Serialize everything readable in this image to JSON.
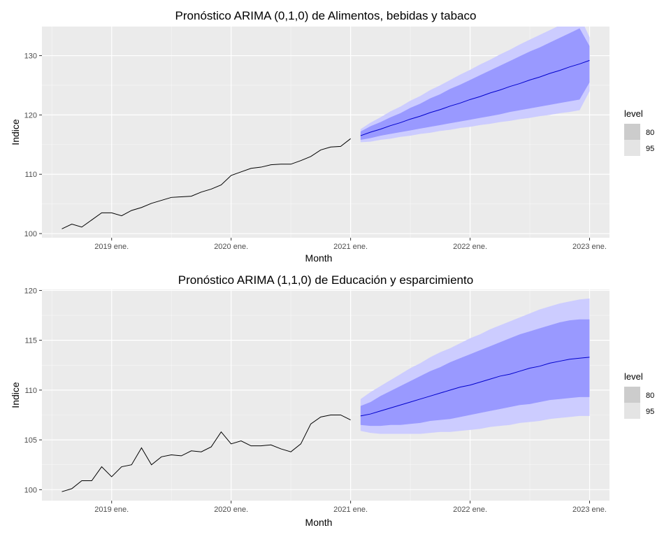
{
  "theme": {
    "panel_bg": "#ebebeb",
    "grid_major": "#ffffff",
    "grid_minor": "#f5f5f5",
    "history_line": "#000000",
    "forecast_line": "#0000cc",
    "band_80": "#9999ff",
    "band_95": "#ccccff",
    "legend_key_80": "#cccccc",
    "legend_key_95": "#e4e4e4"
  },
  "chart_data": [
    {
      "type": "line",
      "title": "Pronóstico ARIMA (0,1,0) de Alimentos, bebidas y tabaco",
      "xlabel": "Month",
      "ylabel": "Indice",
      "x_ticks": [
        "2019 ene.",
        "2020 ene.",
        "2021 ene.",
        "2022 ene.",
        "2023 ene."
      ],
      "y_ticks": [
        100,
        110,
        120,
        130
      ],
      "xlim": [
        "2018-06",
        "2023-03"
      ],
      "ylim": [
        99.3,
        134.9
      ],
      "grid": true,
      "legend": {
        "position": "right",
        "title": "level",
        "labels": [
          "80",
          "95"
        ]
      },
      "series": [
        {
          "kind": "history",
          "x": [
            "2018-08",
            "2018-09",
            "2018-10",
            "2018-11",
            "2018-12",
            "2019-01",
            "2019-02",
            "2019-03",
            "2019-04",
            "2019-05",
            "2019-06",
            "2019-07",
            "2019-08",
            "2019-09",
            "2019-10",
            "2019-11",
            "2019-12",
            "2020-01",
            "2020-02",
            "2020-03",
            "2020-04",
            "2020-05",
            "2020-06",
            "2020-07",
            "2020-08",
            "2020-09",
            "2020-10",
            "2020-11",
            "2020-12",
            "2021-01"
          ],
          "values": [
            100.8,
            101.6,
            101.1,
            102.3,
            103.5,
            103.5,
            103.0,
            103.9,
            104.4,
            105.1,
            105.6,
            106.1,
            106.2,
            106.3,
            107.0,
            107.5,
            108.2,
            109.8,
            110.4,
            111.0,
            111.2,
            111.6,
            111.7,
            111.7,
            112.3,
            113.0,
            114.1,
            114.6,
            114.7,
            116.0
          ]
        },
        {
          "kind": "forecast",
          "x": [
            "2021-02",
            "2021-03",
            "2021-04",
            "2021-05",
            "2021-06",
            "2021-07",
            "2021-08",
            "2021-09",
            "2021-10",
            "2021-11",
            "2021-12",
            "2022-01",
            "2022-02",
            "2022-03",
            "2022-04",
            "2022-05",
            "2022-06",
            "2022-07",
            "2022-08",
            "2022-09",
            "2022-10",
            "2022-11",
            "2022-12",
            "2023-01"
          ],
          "mean": [
            116.5,
            117.1,
            117.6,
            118.2,
            118.7,
            119.3,
            119.8,
            120.4,
            120.9,
            121.5,
            122.0,
            122.6,
            123.1,
            123.7,
            124.2,
            124.8,
            125.3,
            125.9,
            126.4,
            127.0,
            127.5,
            128.1,
            128.6,
            129.2
          ],
          "lo80": [
            115.8,
            116.1,
            116.5,
            116.8,
            117.1,
            117.4,
            117.7,
            118.0,
            118.3,
            118.6,
            118.9,
            119.2,
            119.5,
            119.8,
            120.1,
            120.5,
            120.8,
            121.1,
            121.4,
            121.7,
            122.0,
            122.3,
            122.6,
            125.5
          ],
          "hi80": [
            117.2,
            118.1,
            118.8,
            119.6,
            120.3,
            121.2,
            121.9,
            122.8,
            123.5,
            124.4,
            125.1,
            125.9,
            126.7,
            127.5,
            128.3,
            129.1,
            129.9,
            130.7,
            131.4,
            132.2,
            133.0,
            133.8,
            134.6,
            131.6
          ],
          "lo95": [
            115.4,
            115.5,
            115.8,
            116.0,
            116.3,
            116.5,
            116.8,
            117.0,
            117.3,
            117.5,
            117.8,
            118.0,
            118.3,
            118.5,
            118.8,
            119.0,
            119.3,
            119.5,
            119.8,
            120.0,
            120.3,
            120.5,
            120.8,
            124.0
          ],
          "hi95": [
            117.6,
            118.7,
            119.6,
            120.6,
            121.4,
            122.4,
            123.2,
            124.2,
            125.0,
            125.9,
            126.8,
            127.6,
            128.5,
            129.3,
            130.2,
            131.0,
            131.9,
            132.7,
            133.5,
            134.3,
            135.1,
            135.9,
            136.7,
            133.1
          ]
        }
      ]
    },
    {
      "type": "line",
      "title": "Pronóstico ARIMA (1,1,0) de Educación y esparcimiento",
      "xlabel": "Month",
      "ylabel": "Indice",
      "x_ticks": [
        "2019 ene.",
        "2020 ene.",
        "2021 ene.",
        "2022 ene.",
        "2023 ene."
      ],
      "y_ticks": [
        100,
        105,
        110,
        115,
        120
      ],
      "xlim": [
        "2018-06",
        "2023-03"
      ],
      "ylim": [
        98.9,
        120.1
      ],
      "grid": true,
      "legend": {
        "position": "right",
        "title": "level",
        "labels": [
          "80",
          "95"
        ]
      },
      "series": [
        {
          "kind": "history",
          "x": [
            "2018-08",
            "2018-09",
            "2018-10",
            "2018-11",
            "2018-12",
            "2019-01",
            "2019-02",
            "2019-03",
            "2019-04",
            "2019-05",
            "2019-06",
            "2019-07",
            "2019-08",
            "2019-09",
            "2019-10",
            "2019-11",
            "2019-12",
            "2020-01",
            "2020-02",
            "2020-03",
            "2020-04",
            "2020-05",
            "2020-06",
            "2020-07",
            "2020-08",
            "2020-09",
            "2020-10",
            "2020-11",
            "2020-12",
            "2021-01"
          ],
          "values": [
            99.8,
            100.1,
            100.9,
            100.9,
            102.3,
            101.3,
            102.3,
            102.5,
            104.2,
            102.5,
            103.3,
            103.5,
            103.4,
            103.9,
            103.8,
            104.3,
            105.8,
            104.6,
            104.9,
            104.4,
            104.4,
            104.5,
            104.1,
            103.8,
            104.6,
            106.6,
            107.3,
            107.5,
            107.5,
            107.0
          ]
        },
        {
          "kind": "forecast",
          "x": [
            "2021-02",
            "2021-03",
            "2021-04",
            "2021-05",
            "2021-06",
            "2021-07",
            "2021-08",
            "2021-09",
            "2021-10",
            "2021-11",
            "2021-12",
            "2022-01",
            "2022-02",
            "2022-03",
            "2022-04",
            "2022-05",
            "2022-06",
            "2022-07",
            "2022-08",
            "2022-09",
            "2022-10",
            "2022-11",
            "2022-12",
            "2023-01"
          ],
          "mean": [
            107.4,
            107.6,
            107.9,
            108.2,
            108.5,
            108.8,
            109.1,
            109.4,
            109.7,
            110.0,
            110.3,
            110.5,
            110.8,
            111.1,
            111.4,
            111.6,
            111.9,
            112.2,
            112.4,
            112.7,
            112.9,
            113.1,
            113.2,
            113.3
          ],
          "lo80": [
            106.5,
            106.4,
            106.4,
            106.5,
            106.5,
            106.6,
            106.7,
            106.9,
            107.0,
            107.1,
            107.3,
            107.5,
            107.7,
            107.9,
            108.1,
            108.3,
            108.5,
            108.6,
            108.8,
            109.0,
            109.1,
            109.2,
            109.3,
            109.3
          ],
          "hi80": [
            108.4,
            108.8,
            109.4,
            109.9,
            110.4,
            110.9,
            111.4,
            111.9,
            112.3,
            112.8,
            113.2,
            113.6,
            114.0,
            114.4,
            114.8,
            115.2,
            115.6,
            115.9,
            116.2,
            116.5,
            116.8,
            117.0,
            117.1,
            117.1
          ],
          "lo95": [
            105.9,
            105.7,
            105.6,
            105.6,
            105.6,
            105.6,
            105.6,
            105.7,
            105.8,
            105.8,
            105.9,
            106.0,
            106.1,
            106.3,
            106.4,
            106.5,
            106.7,
            106.8,
            106.9,
            107.1,
            107.2,
            107.3,
            107.4,
            107.4
          ],
          "hi95": [
            109.1,
            109.8,
            110.4,
            111.0,
            111.6,
            112.2,
            112.7,
            113.3,
            113.8,
            114.2,
            114.7,
            115.2,
            115.6,
            116.1,
            116.5,
            116.9,
            117.3,
            117.7,
            118.1,
            118.4,
            118.7,
            118.9,
            119.1,
            119.2
          ]
        }
      ]
    }
  ]
}
